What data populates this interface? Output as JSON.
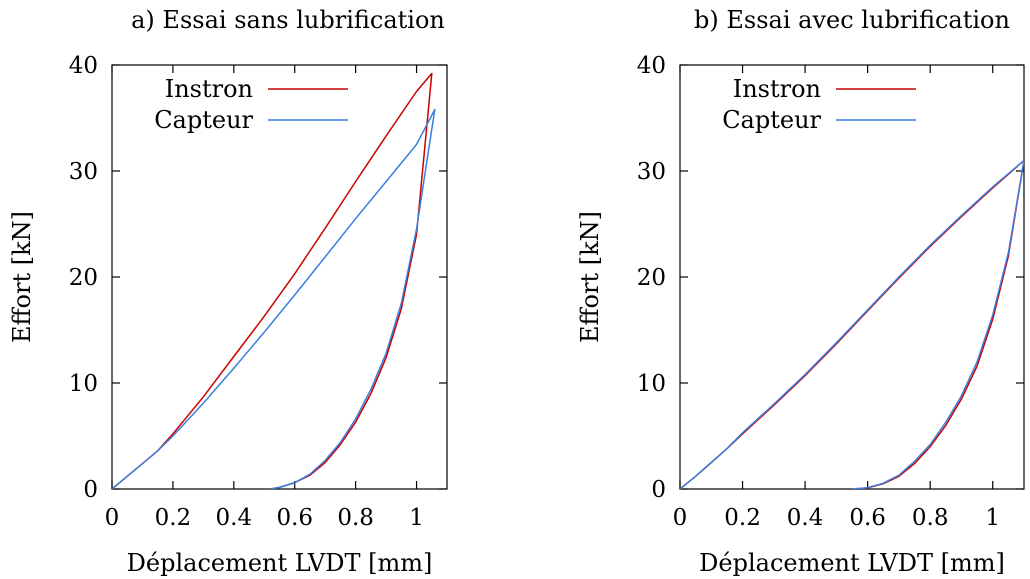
{
  "chart_data": [
    {
      "type": "line",
      "title": "a) Essai sans lubrification",
      "xlabel": "Déplacement LVDT [mm]",
      "ylabel": "Effort [kN]",
      "xlim": [
        0,
        1.1
      ],
      "ylim": [
        0,
        40
      ],
      "xticks": [
        "0",
        "0.2",
        "0.4",
        "0.6",
        "0.8",
        "1"
      ],
      "yticks": [
        "0",
        "10",
        "20",
        "30",
        "40"
      ],
      "legend": "top-left",
      "series": [
        {
          "name": "Instron",
          "color": "#cc0000",
          "x": [
            0,
            0.05,
            0.1,
            0.15,
            0.2,
            0.3,
            0.4,
            0.5,
            0.6,
            0.7,
            0.8,
            0.9,
            1.0,
            1.05,
            1.0,
            0.95,
            0.9,
            0.85,
            0.8,
            0.75,
            0.7,
            0.65,
            0.6,
            0.55,
            0.52
          ],
          "y": [
            0,
            1.2,
            2.4,
            3.6,
            5.2,
            8.7,
            12.5,
            16.3,
            20.3,
            24.6,
            29.0,
            33.3,
            37.5,
            39.2,
            24.0,
            17.0,
            12.4,
            9.0,
            6.3,
            4.2,
            2.5,
            1.3,
            0.6,
            0.15,
            0
          ]
        },
        {
          "name": "Capteur",
          "color": "#3a7fe0",
          "x": [
            0,
            0.05,
            0.1,
            0.15,
            0.2,
            0.3,
            0.4,
            0.5,
            0.6,
            0.7,
            0.8,
            0.9,
            1.0,
            1.06,
            1.0,
            0.95,
            0.9,
            0.85,
            0.8,
            0.75,
            0.7,
            0.65,
            0.6,
            0.55,
            0.52
          ],
          "y": [
            0,
            1.2,
            2.4,
            3.6,
            5.0,
            8.1,
            11.4,
            14.8,
            18.3,
            21.9,
            25.5,
            29.0,
            32.5,
            35.8,
            24.5,
            17.5,
            12.8,
            9.4,
            6.6,
            4.4,
            2.7,
            1.4,
            0.6,
            0.15,
            0
          ]
        }
      ]
    },
    {
      "type": "line",
      "title": "b) Essai avec lubrification",
      "xlabel": "Déplacement LVDT [mm]",
      "ylabel": "Effort [kN]",
      "xlim": [
        0,
        1.1
      ],
      "ylim": [
        0,
        40
      ],
      "xticks": [
        "0",
        "0.2",
        "0.4",
        "0.6",
        "0.8",
        "1"
      ],
      "yticks": [
        "0",
        "10",
        "20",
        "30",
        "40"
      ],
      "legend": "top-left",
      "series": [
        {
          "name": "Instron",
          "color": "#cc0000",
          "x": [
            0,
            0.05,
            0.1,
            0.15,
            0.2,
            0.3,
            0.4,
            0.5,
            0.6,
            0.7,
            0.8,
            0.9,
            1.0,
            1.1,
            1.05,
            1.0,
            0.95,
            0.9,
            0.85,
            0.8,
            0.75,
            0.7,
            0.65,
            0.6,
            0.56
          ],
          "y": [
            0,
            1.2,
            2.5,
            3.8,
            5.2,
            7.9,
            10.7,
            13.7,
            16.8,
            19.9,
            22.9,
            25.7,
            28.4,
            31.0,
            22.0,
            16.0,
            11.6,
            8.5,
            6.0,
            4.0,
            2.4,
            1.2,
            0.5,
            0.1,
            0
          ]
        },
        {
          "name": "Capteur",
          "color": "#3a7fe0",
          "x": [
            0,
            0.05,
            0.1,
            0.15,
            0.2,
            0.3,
            0.4,
            0.5,
            0.6,
            0.7,
            0.8,
            0.9,
            1.0,
            1.1,
            1.05,
            1.0,
            0.95,
            0.9,
            0.85,
            0.8,
            0.75,
            0.7,
            0.65,
            0.6,
            0.55
          ],
          "y": [
            0,
            1.2,
            2.5,
            3.8,
            5.3,
            8.0,
            10.8,
            13.8,
            16.9,
            20.0,
            23.0,
            25.8,
            28.5,
            31.0,
            22.3,
            16.4,
            12.0,
            8.8,
            6.3,
            4.2,
            2.6,
            1.3,
            0.55,
            0.12,
            0
          ]
        }
      ]
    }
  ]
}
